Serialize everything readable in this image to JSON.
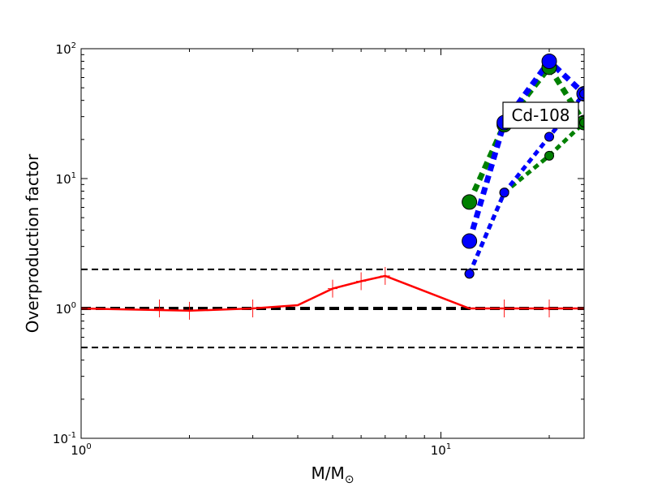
{
  "chart_data": {
    "type": "line",
    "xscale": "log",
    "yscale": "log",
    "xlim": [
      1,
      25
    ],
    "ylim": [
      0.1,
      100
    ],
    "xlabel": "M/M",
    "xlabel_sub": "⊙",
    "ylabel": "Overproduction factor",
    "grid": false,
    "x_ticks": [
      {
        "base": "10",
        "exp": "0",
        "value": 1
      },
      {
        "base": "10",
        "exp": "1",
        "value": 10
      }
    ],
    "y_ticks": [
      {
        "base": "10",
        "exp": "-1",
        "value": 0.1
      },
      {
        "base": "10",
        "exp": "0",
        "value": 1
      },
      {
        "base": "10",
        "exp": "1",
        "value": 10
      },
      {
        "base": "10",
        "exp": "2",
        "value": 100
      }
    ],
    "reference_lines": [
      {
        "y": 2.0,
        "style": "dashed",
        "color": "#000000",
        "width": 2
      },
      {
        "y": 1.0,
        "style": "dashed",
        "color": "#000000",
        "width": 4
      },
      {
        "y": 0.5,
        "style": "dashed",
        "color": "#000000",
        "width": 2
      }
    ],
    "series": [
      {
        "style": "solid",
        "color": "#ff0000",
        "width": 2.5,
        "marker": "none",
        "x": [
          1,
          2,
          3,
          4,
          5,
          6,
          7,
          12,
          15,
          20,
          25
        ],
        "y": [
          1.0,
          0.96,
          1.0,
          1.06,
          1.42,
          1.62,
          1.78,
          1.0,
          1.0,
          1.0,
          1.0
        ]
      },
      {
        "style": "error-ticks",
        "color": "#ff0000",
        "marker": "plus",
        "x": [
          1.65,
          2.0,
          3.0,
          5.0,
          6.0,
          7.0,
          15.0,
          20.0
        ],
        "y": [
          1.0,
          0.96,
          1.0,
          1.42,
          1.62,
          1.78,
          1.0,
          1.0
        ]
      },
      {
        "style": "dotted",
        "color": "#008000",
        "width": 7,
        "marker": "circle-large",
        "x": [
          12,
          15,
          20,
          25
        ],
        "y": [
          6.6,
          26,
          72,
          27
        ]
      },
      {
        "style": "dotted",
        "color": "#0000ff",
        "width": 7,
        "marker": "circle-large",
        "x": [
          12,
          15,
          20,
          25
        ],
        "y": [
          3.3,
          27,
          80,
          45
        ]
      },
      {
        "style": "dotted",
        "color": "#008000",
        "width": 5,
        "marker": "circle-small",
        "x": [
          12,
          15,
          20,
          25
        ],
        "y": [
          1.85,
          7.8,
          15,
          27
        ]
      },
      {
        "style": "dotted",
        "color": "#0000ff",
        "width": 5,
        "marker": "circle-small",
        "x": [
          12,
          15,
          20,
          25
        ],
        "y": [
          1.85,
          7.8,
          21,
          45
        ]
      }
    ],
    "annotation": {
      "text": "Cd-108",
      "placement": "upper-right"
    }
  }
}
